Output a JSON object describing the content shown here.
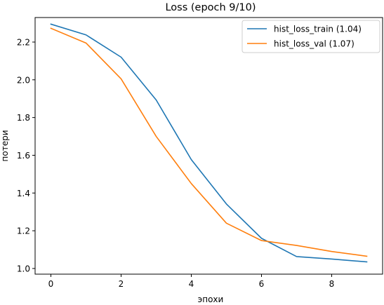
{
  "chart_data": {
    "type": "line",
    "title": "Loss (epoch 9/10)",
    "xlabel": "эпохи",
    "ylabel": "потери",
    "xlim": [
      -0.45,
      9.45
    ],
    "ylim": [
      0.97,
      2.33
    ],
    "xticks": [
      0,
      2,
      4,
      6,
      8
    ],
    "xtick_labels": [
      "0",
      "2",
      "4",
      "6",
      "8"
    ],
    "yticks": [
      1.0,
      1.2,
      1.4,
      1.6,
      1.8,
      2.0,
      2.2
    ],
    "ytick_labels": [
      "1.0",
      "1.2",
      "1.4",
      "1.6",
      "1.8",
      "2.0",
      "2.2"
    ],
    "x": [
      0,
      1,
      2,
      3,
      4,
      5,
      6,
      7,
      8,
      9
    ],
    "series": [
      {
        "name": "hist_loss_train (1.04)",
        "color": "#1f77b4",
        "values": [
          2.295,
          2.238,
          2.12,
          1.893,
          1.577,
          1.342,
          1.16,
          1.063,
          1.05,
          1.035
        ]
      },
      {
        "name": "hist_loss_val (1.07)",
        "color": "#ff7f0e",
        "values": [
          2.273,
          2.195,
          2.005,
          1.7,
          1.45,
          1.24,
          1.148,
          1.122,
          1.09,
          1.065
        ]
      }
    ],
    "grid": false,
    "legend_position": "top-right"
  }
}
